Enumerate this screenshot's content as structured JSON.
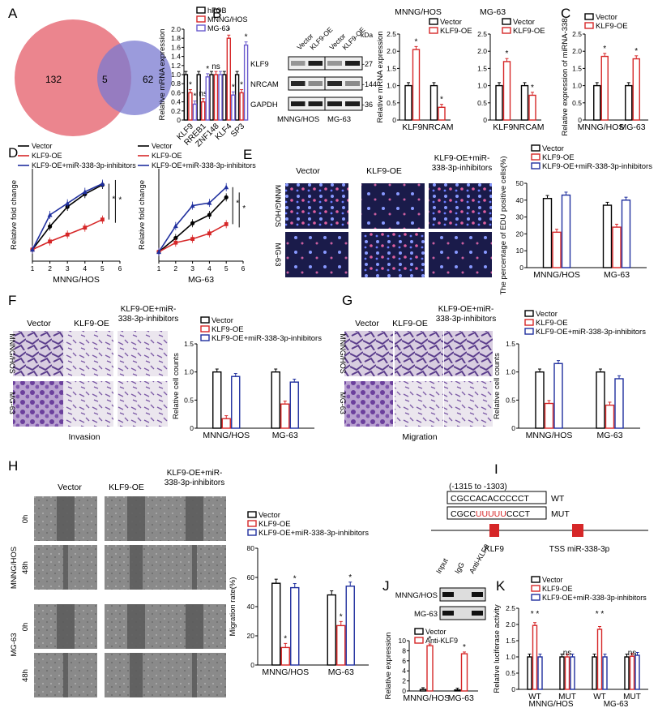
{
  "panels": [
    "A",
    "B",
    "C",
    "D",
    "E",
    "F",
    "G",
    "H",
    "I",
    "J",
    "K"
  ],
  "venn": {
    "left": "132",
    "middle": "5",
    "right": "62"
  },
  "chart_data": [
    {
      "id": "A",
      "type": "bar",
      "ylabel": "Relative mRNA expression",
      "ylim": [
        0,
        2.0
      ],
      "yticks": [
        "0",
        "0.2",
        "0.4",
        "0.6",
        "0.8",
        "1.0",
        "1.2",
        "1.4",
        "1.6",
        "1.8",
        "2.0"
      ],
      "categories": [
        "KLF9",
        "RREB1",
        "ZNF148",
        "KLF4",
        "SP3"
      ],
      "series": [
        {
          "name": "hFOB",
          "values": [
            1,
            1,
            1,
            1,
            1
          ]
        },
        {
          "name": "MNNG/HOS",
          "values": [
            0.6,
            0.4,
            1.0,
            1.8,
            0.6
          ]
        },
        {
          "name": "MG-63",
          "values": [
            0.35,
            0.95,
            1.0,
            0.55,
            1.65
          ]
        }
      ],
      "annotations": [
        "*",
        "*",
        "ns",
        "*",
        "ns",
        "*",
        "*",
        "*",
        "*"
      ]
    },
    {
      "id": "B1",
      "type": "bar",
      "title": "MNNG/HOS",
      "ylabel": "Relative mRNA expression",
      "ylim": [
        0,
        2.5
      ],
      "yticks": [
        "0",
        "0.5",
        "1.0",
        "1.5",
        "2.0",
        "2.5"
      ],
      "categories": [
        "KLF9",
        "NRCAM"
      ],
      "series": [
        {
          "name": "Vector",
          "values": [
            1,
            1
          ]
        },
        {
          "name": "KLF9-OE",
          "values": [
            2.05,
            0.37
          ]
        }
      ]
    },
    {
      "id": "B2",
      "type": "bar",
      "title": "MG-63",
      "ylabel": "Relative mRNA expression",
      "ylim": [
        0,
        2.5
      ],
      "yticks": [
        "0",
        "0.5",
        "1.0",
        "1.5",
        "2.0",
        "2.5"
      ],
      "categories": [
        "KLF9",
        "NRCAM"
      ],
      "series": [
        {
          "name": "Vector",
          "values": [
            1,
            1
          ]
        },
        {
          "name": "KLF9-OE",
          "values": [
            1.7,
            0.72
          ]
        }
      ]
    },
    {
      "id": "C",
      "type": "bar",
      "ylabel": "Relative expression of miRNA-338",
      "ylim": [
        0,
        2.5
      ],
      "yticks": [
        "0",
        "0.5",
        "1.0",
        "1.5",
        "2.0",
        "2.5"
      ],
      "categories": [
        "MNNG/HOS",
        "MG-63"
      ],
      "series": [
        {
          "name": "Vector",
          "values": [
            1,
            1
          ]
        },
        {
          "name": "KLF9-OE",
          "values": [
            1.85,
            1.78
          ]
        }
      ]
    },
    {
      "id": "D1",
      "type": "line",
      "xlabel": "MNNG/HOS",
      "ylabel": "Relative fold change",
      "ylim": [
        0,
        8
      ],
      "xlim": [
        1,
        6
      ],
      "x": [
        1,
        2,
        3,
        4,
        5
      ],
      "series": [
        {
          "name": "Vector",
          "values": [
            1,
            3.0,
            4.7,
            5.8,
            6.6
          ]
        },
        {
          "name": "KLF9-OE",
          "values": [
            1,
            1.7,
            2.3,
            2.9,
            3.6
          ]
        },
        {
          "name": "KLF9-OE+miR-338-3p-inhibitors",
          "values": [
            1,
            4.0,
            5.0,
            6.0,
            6.7
          ]
        }
      ]
    },
    {
      "id": "D2",
      "type": "line",
      "xlabel": "MG-63",
      "ylabel": "Relative fold change",
      "ylim": [
        0,
        10
      ],
      "xlim": [
        1,
        6
      ],
      "x": [
        1,
        2,
        3,
        4,
        5
      ],
      "series": [
        {
          "name": "Vector",
          "values": [
            1,
            2.5,
            4.1,
            5.0,
            6.9
          ]
        },
        {
          "name": "KLF9-OE",
          "values": [
            1,
            2.0,
            2.4,
            3.0,
            4.0
          ]
        },
        {
          "name": "KLF9-OE+miR-338-3p-inhibitors",
          "values": [
            1,
            3.8,
            6.0,
            6.3,
            8.0
          ]
        }
      ]
    },
    {
      "id": "E",
      "type": "bar",
      "ylabel": "The percentage of EDU positive cells(%)",
      "ylim": [
        0,
        50
      ],
      "yticks": [
        "0",
        "10",
        "20",
        "30",
        "40",
        "50"
      ],
      "categories": [
        "MNNG/HOS",
        "MG-63"
      ],
      "series": [
        {
          "name": "Vector",
          "values": [
            41,
            37
          ]
        },
        {
          "name": "KLF9-OE",
          "values": [
            21,
            24
          ]
        },
        {
          "name": "KLF9-OE+miR-338-3p-inhibitors",
          "values": [
            43,
            40
          ]
        }
      ]
    },
    {
      "id": "F",
      "type": "bar",
      "ylabel": "Relative cell counts",
      "ylim": [
        0,
        1.5
      ],
      "yticks": [
        "0",
        "0.5",
        "1.0",
        "1.5"
      ],
      "categories": [
        "MNNG/HOS",
        "MG-63"
      ],
      "series": [
        {
          "name": "Vector",
          "values": [
            1.0,
            1.0
          ]
        },
        {
          "name": "KLF9-OE",
          "values": [
            0.17,
            0.43
          ]
        },
        {
          "name": "KLF9-OE+miR-338-3p-inhibitors",
          "values": [
            0.92,
            0.82
          ]
        }
      ]
    },
    {
      "id": "G",
      "type": "bar",
      "ylabel": "Relative cell counts",
      "ylim": [
        0,
        1.5
      ],
      "yticks": [
        "0",
        "0.5",
        "1.0",
        "1.5"
      ],
      "categories": [
        "MNNG/HOS",
        "MG-63"
      ],
      "series": [
        {
          "name": "Vector",
          "values": [
            1.0,
            1.0
          ]
        },
        {
          "name": "KLF9-OE",
          "values": [
            0.44,
            0.41
          ]
        },
        {
          "name": "KLF9-OE+miR-338-3p-inhibitors",
          "values": [
            1.15,
            0.88
          ]
        }
      ]
    },
    {
      "id": "H",
      "type": "bar",
      "ylabel": "Migration rate(%)",
      "ylim": [
        0,
        80
      ],
      "yticks": [
        "0",
        "20",
        "40",
        "60",
        "80"
      ],
      "categories": [
        "MNNG/HOS",
        "MG-63"
      ],
      "series": [
        {
          "name": "Vector",
          "values": [
            56,
            48
          ]
        },
        {
          "name": "KLF9-OE",
          "values": [
            12,
            27
          ]
        },
        {
          "name": "KLF9-OE+miR-338-3p-inhibitors",
          "values": [
            53,
            54
          ]
        }
      ]
    },
    {
      "id": "J",
      "type": "bar",
      "ylabel": "Relative expression",
      "ylim": [
        0,
        10
      ],
      "yticks": [
        "0",
        "2",
        "4",
        "6",
        "8",
        "10"
      ],
      "categories": [
        "MNNG/HOS",
        "MG-63"
      ],
      "series": [
        {
          "name": "Vector",
          "values": [
            0.3,
            0.2
          ]
        },
        {
          "name": "Anti-KLF9",
          "values": [
            9.0,
            7.4
          ]
        }
      ]
    },
    {
      "id": "K",
      "type": "bar",
      "ylabel": "Relative luciferase activity",
      "ylim": [
        0,
        2.5
      ],
      "yticks": [
        "0",
        "0.5",
        "1.0",
        "1.5",
        "2.0",
        "2.5"
      ],
      "categories": [
        "WT",
        "MUT",
        "WT",
        "MUT"
      ],
      "groups": [
        "MNNG/HOS",
        "MG-63"
      ],
      "series": [
        {
          "name": "Vector",
          "values": [
            1,
            1,
            1,
            1
          ]
        },
        {
          "name": "KLF9-OE",
          "values": [
            1.97,
            1.0,
            1.85,
            1.02
          ]
        },
        {
          "name": "KLF9-OE+miR-338-3p-inhibitors",
          "values": [
            1,
            1,
            1,
            1.05
          ]
        }
      ]
    }
  ],
  "text": {
    "vector": "Vector",
    "klf9oe": "KLF9-OE",
    "combo1": "KLF9-OE+miR-",
    "combo2": "338-3p-inhibitors",
    "legend_combo": "KLF9-OE+miR-338-3p-inhibitors",
    "mnng": "MNNG/HOS",
    "mg63": "MG-63",
    "kda": "kDa",
    "bands": [
      "KLF9",
      "NRCAM",
      "GAPDH"
    ],
    "kd": [
      "-27",
      "-144",
      "-36"
    ],
    "invasion": "Invasion",
    "migration": "Migration",
    "h0": "0h",
    "h48": "48h",
    "wt_seq": "CGCCACACCCCCT",
    "mut_a": "CGCC",
    "mut_b": "UUUUU",
    "mut_c": "CCCT",
    "region": "(-1315  to  -1303)",
    "wt": "WT",
    "mut": "MUT",
    "klf9": "KLF9",
    "tss": "TSS miR-338-3p",
    "input": "Input",
    "igg": "IgG",
    "anti": "Anti-KLF9",
    "anti_legend": "Anti-KLF9"
  },
  "colors": {
    "vector": "#000000",
    "oe": "#d62728",
    "combo": "#1f2f9e",
    "mg63": "#6a5acd",
    "venn_left": "#e8707a",
    "venn_right": "#7a7ad0"
  }
}
